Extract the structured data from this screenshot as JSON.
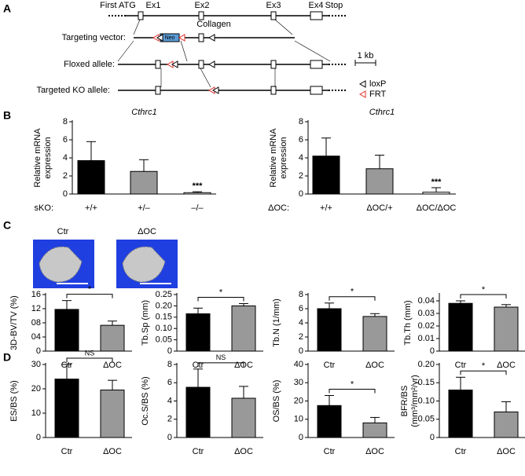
{
  "panel_a": {
    "label": "A",
    "first_atg": "First ATG",
    "exons": [
      "Ex1",
      "Ex2",
      "Ex3",
      "Ex4"
    ],
    "stop": "Stop",
    "collagen": "Collagen",
    "neo": "Neo",
    "rows": [
      "Targeting vector:",
      "Floxed allele:",
      "Targeted KO allele:"
    ],
    "scale": "1 kb",
    "legend": [
      "loxP",
      "FRT"
    ]
  },
  "panels": {
    "b": "B",
    "c": "C",
    "d": "D"
  },
  "images": [
    "Ctr",
    "ΔOC"
  ],
  "chart_data": [
    {
      "type": "bar",
      "title": "Cthrc1",
      "ylabel": [
        "Relative mRNA",
        "expression"
      ],
      "genotype_label": "sKO:",
      "categories": [
        "+/+",
        "+/–",
        "–/–"
      ],
      "values": [
        3.7,
        2.5,
        0.15
      ],
      "errors": [
        2.1,
        1.3,
        0.1
      ],
      "colors": [
        "#000000",
        "#999999",
        "#ffffff"
      ],
      "ylim": [
        0,
        8
      ],
      "yticks": [
        0,
        2,
        4,
        6,
        8
      ],
      "significance": "***"
    },
    {
      "type": "bar",
      "title": "Cthrc1",
      "ylabel": [
        "Relative mRNA",
        "expression"
      ],
      "genotype_label": "ΔOC:",
      "categories": [
        "+/+",
        "ΔOC/+",
        "ΔOC/ΔOC"
      ],
      "values": [
        4.2,
        2.8,
        0.2
      ],
      "errors": [
        2.0,
        1.5,
        0.5
      ],
      "colors": [
        "#000000",
        "#999999",
        "#ffffff"
      ],
      "ylim": [
        0,
        8
      ],
      "yticks": [
        0,
        2,
        4,
        6,
        8
      ],
      "significance": "***"
    },
    {
      "type": "bar",
      "ylabel": "3D-BV/TV (%)",
      "categories": [
        "Ctr",
        "ΔOC"
      ],
      "values": [
        11.8,
        7.3
      ],
      "errors": [
        2.5,
        1.2
      ],
      "colors": [
        "#000000",
        "#999999"
      ],
      "ylim": [
        0,
        16
      ],
      "yticks": [
        0,
        {
          "value": 4,
          "label": "04"
        },
        {
          "value": 8,
          "label": "08"
        },
        12,
        16
      ],
      "significance": "*"
    },
    {
      "type": "bar",
      "ylabel": "Tb.Sp (mm)",
      "categories": [
        "Ctr",
        "ΔOC"
      ],
      "values": [
        0.165,
        0.2
      ],
      "errors": [
        0.025,
        0.01
      ],
      "colors": [
        "#000000",
        "#999999"
      ],
      "ylim": [
        0,
        0.25
      ],
      "yticks": [
        0,
        0.05,
        {
          "value": 0.1,
          "label": "0.10"
        },
        0.15,
        {
          "value": 0.2,
          "label": "0.20"
        },
        0.25
      ],
      "significance": "*"
    },
    {
      "type": "bar",
      "ylabel": "Tb.N (1/mm)",
      "categories": [
        "Ctr",
        "ΔOC"
      ],
      "values": [
        6.0,
        4.9
      ],
      "errors": [
        0.8,
        0.4
      ],
      "colors": [
        "#000000",
        "#999999"
      ],
      "ylim": [
        0,
        8
      ],
      "yticks": [
        0,
        2,
        4,
        6,
        8
      ],
      "significance": "*"
    },
    {
      "type": "bar",
      "ylabel": "Tb.Th (mm)",
      "categories": [
        "Ctr",
        "ΔOC"
      ],
      "values": [
        0.038,
        0.035
      ],
      "errors": [
        0.002,
        0.002
      ],
      "colors": [
        "#000000",
        "#999999"
      ],
      "ylim": [
        0,
        0.045
      ],
      "yticks": [
        0,
        0.01,
        0.02,
        0.03,
        0.04
      ],
      "significance": "*"
    },
    {
      "type": "bar",
      "ylabel": "ES/BS (%)",
      "categories": [
        "Ctr",
        "ΔOC"
      ],
      "values": [
        24,
        19.5
      ],
      "errors": [
        6,
        4
      ],
      "colors": [
        "#000000",
        "#999999"
      ],
      "ylim": [
        0,
        30
      ],
      "yticks": [
        0,
        10,
        20,
        30
      ],
      "significance": "NS"
    },
    {
      "type": "bar",
      "ylabel": "Oc.S/BS (%)",
      "categories": [
        "Ctr",
        "ΔOC"
      ],
      "values": [
        5.5,
        4.3
      ],
      "errors": [
        2,
        1.3
      ],
      "colors": [
        "#000000",
        "#999999"
      ],
      "ylim": [
        0,
        8
      ],
      "yticks": [
        0,
        2,
        4,
        6,
        8
      ],
      "significance": "NS"
    },
    {
      "type": "bar",
      "ylabel": "OS/BS (%)",
      "categories": [
        "Ctr",
        "ΔOC"
      ],
      "values": [
        17.5,
        8
      ],
      "errors": [
        5.5,
        3
      ],
      "colors": [
        "#000000",
        "#999999"
      ],
      "ylim": [
        0,
        40
      ],
      "yticks": [
        0,
        10,
        20,
        30,
        40
      ],
      "significance": "*"
    },
    {
      "type": "bar",
      "ylabel": [
        "BFR/BS",
        "(mm³/mm²/yr)"
      ],
      "categories": [
        "Ctr",
        "ΔOC"
      ],
      "values": [
        0.13,
        0.07
      ],
      "errors": [
        0.035,
        0.028
      ],
      "colors": [
        "#000000",
        "#999999"
      ],
      "ylim": [
        0,
        0.2
      ],
      "yticks": [
        0,
        0.05,
        {
          "value": 0.1,
          "label": "0.10"
        },
        0.15,
        {
          "value": 0.2,
          "label": "0.20"
        }
      ],
      "significance": "*"
    }
  ]
}
